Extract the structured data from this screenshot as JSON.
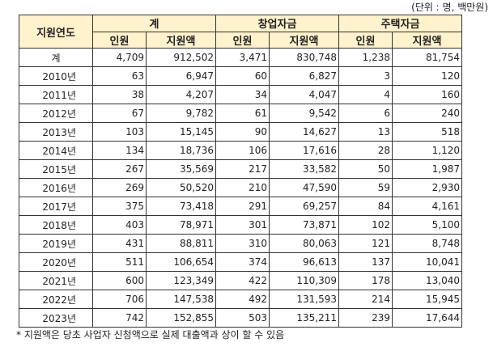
{
  "unit": "(단위 : 명, 백만원)",
  "headers": {
    "year": "지원연도",
    "groups": [
      "계",
      "창업자금",
      "주택자금"
    ],
    "sub": [
      "인원",
      "지원액"
    ]
  },
  "rows": [
    [
      "계",
      "4,709",
      "912,502",
      "3,471",
      "830,748",
      "1,238",
      "81,754"
    ],
    [
      "2010년",
      "63",
      "6,947",
      "60",
      "6,827",
      "3",
      "120"
    ],
    [
      "2011년",
      "38",
      "4,207",
      "34",
      "4,047",
      "4",
      "160"
    ],
    [
      "2012년",
      "67",
      "9,782",
      "61",
      "9,542",
      "6",
      "240"
    ],
    [
      "2013년",
      "103",
      "15,145",
      "90",
      "14,627",
      "13",
      "518"
    ],
    [
      "2014년",
      "134",
      "18,736",
      "106",
      "17,616",
      "28",
      "1,120"
    ],
    [
      "2015년",
      "267",
      "35,569",
      "217",
      "33,582",
      "50",
      "1,987"
    ],
    [
      "2016년",
      "269",
      "50,520",
      "210",
      "47,590",
      "59",
      "2,930"
    ],
    [
      "2017년",
      "375",
      "73,418",
      "291",
      "69,257",
      "84",
      "4,161"
    ],
    [
      "2018년",
      "403",
      "78,971",
      "301",
      "73,871",
      "102",
      "5,100"
    ],
    [
      "2019년",
      "431",
      "88,811",
      "310",
      "80,063",
      "121",
      "8,748"
    ],
    [
      "2020년",
      "511",
      "106,654",
      "374",
      "96,613",
      "137",
      "10,041"
    ],
    [
      "2021년",
      "600",
      "123,349",
      "422",
      "110,309",
      "178",
      "13,040"
    ],
    [
      "2022년",
      "706",
      "147,538",
      "492",
      "131,593",
      "214",
      "15,945"
    ],
    [
      "2023년",
      "742",
      "152,855",
      "503",
      "135,211",
      "239",
      "17,644"
    ]
  ],
  "note": "* 지원액은 당초 사업자 신청액으로 실제 대출액과 상이 할 수 있음"
}
